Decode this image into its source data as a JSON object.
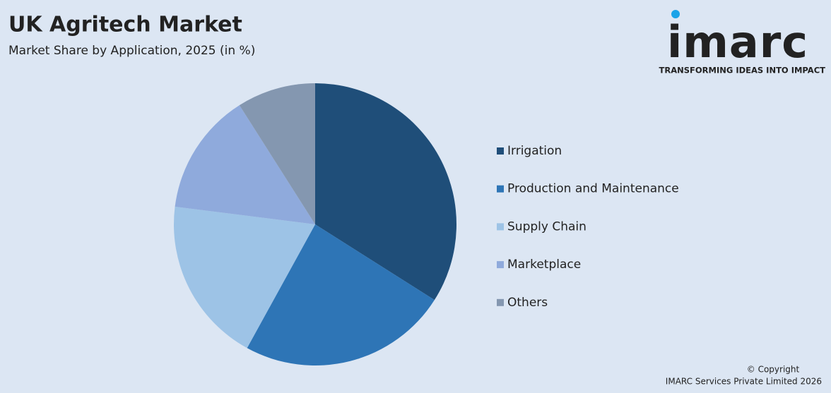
{
  "chart_data": {
    "type": "pie",
    "title": "UK Agritech Market",
    "subtitle": "Market Share by Application, 2025 (in %)",
    "categories": [
      "Irrigation",
      "Production and Maintenance",
      "Supply Chain",
      "Marketplace",
      "Others"
    ],
    "values": [
      34,
      24,
      19,
      14,
      9
    ],
    "colors": [
      "#1f4e79",
      "#2e75b6",
      "#9dc3e6",
      "#8faadc",
      "#8497b0"
    ],
    "legend": "right"
  },
  "logo": {
    "name": "imarc",
    "tagline": "TRANSFORMING IDEAS INTO IMPACT"
  },
  "footer": {
    "copyright": "© Copyright",
    "company": "IMARC Services Private Limited 2026"
  }
}
